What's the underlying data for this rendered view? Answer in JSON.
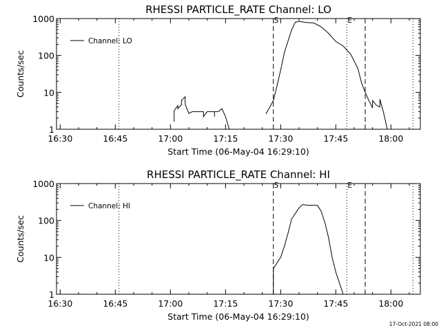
{
  "footer_date": "17-Oct-2021 08:00",
  "chart_data": [
    {
      "type": "line",
      "title": "RHESSI PARTICLE_RATE Channel: LO",
      "xlabel": "Start Time (06-May-04 16:29:10)",
      "ylabel": "Counts/sec",
      "y_scale": "log",
      "ylim": [
        1,
        1000
      ],
      "xlim": [
        "16:29",
        "18:08"
      ],
      "x_ticks": [
        "16:30",
        "16:45",
        "17:00",
        "17:15",
        "17:30",
        "17:45",
        "18:00"
      ],
      "y_ticks": [
        "1",
        "10",
        "100",
        "1000"
      ],
      "legend": {
        "position": "top-left",
        "entries": [
          "Channel: LO"
        ]
      },
      "dotted_lines_at": [
        "16:46",
        "17:48",
        "18:06"
      ],
      "dashed_lines_at": [
        "17:28",
        "17:53"
      ],
      "interval_markers": [
        {
          "label": "S",
          "at": "17:28"
        },
        {
          "label": "E",
          "at": "17:48"
        }
      ],
      "series": [
        {
          "name": "Channel: LO",
          "segments": [
            [
              [
                "17:01",
                1.6
              ],
              [
                "17:01",
                3.2
              ],
              [
                "17:02",
                4.4
              ],
              [
                "17:02",
                3.6
              ],
              [
                "17:03",
                4.6
              ],
              [
                "17:03",
                6.0
              ],
              [
                "17:04",
                7.6
              ],
              [
                "17:04",
                4.8
              ],
              [
                "17:05",
                2.7
              ],
              [
                "17:06",
                3.0
              ],
              [
                "17:09",
                3.0
              ],
              [
                "17:09",
                2.2
              ],
              [
                "17:10",
                3.0
              ],
              [
                "17:12",
                3.0
              ],
              [
                "17:12",
                2.2
              ],
              [
                "17:12",
                3.0
              ],
              [
                "17:13",
                3.0
              ],
              [
                "17:14",
                3.6
              ],
              [
                "17:15",
                2.2
              ],
              [
                "17:16",
                1.0
              ]
            ],
            [
              [
                "17:26",
                2.6
              ],
              [
                "17:28",
                6.0
              ],
              [
                "17:29",
                15
              ],
              [
                "17:30",
                40
              ],
              [
                "17:31",
                120
              ],
              [
                "17:33",
                500
              ],
              [
                "17:34",
                800
              ],
              [
                "17:35",
                840
              ],
              [
                "17:37",
                780
              ],
              [
                "17:39",
                760
              ],
              [
                "17:41",
                600
              ],
              [
                "17:43",
                400
              ],
              [
                "17:45",
                240
              ],
              [
                "17:47",
                180
              ],
              [
                "17:49",
                110
              ],
              [
                "17:51",
                45
              ],
              [
                "17:52",
                18
              ],
              [
                "17:53",
                10
              ],
              [
                "17:54",
                6
              ],
              [
                "17:55",
                3.8
              ],
              [
                "17:55",
                6
              ],
              [
                "17:56",
                4.5
              ],
              [
                "17:57",
                4.0
              ],
              [
                "17:57",
                6.5
              ],
              [
                "17:58",
                2.8
              ],
              [
                "17:59",
                1.0
              ]
            ]
          ]
        }
      ]
    },
    {
      "type": "line",
      "title": "RHESSI PARTICLE_RATE Channel: HI",
      "xlabel": "Start Time (06-May-04 16:29:10)",
      "ylabel": "Counts/sec",
      "y_scale": "log",
      "ylim": [
        1,
        1000
      ],
      "xlim": [
        "16:29",
        "18:08"
      ],
      "x_ticks": [
        "16:30",
        "16:45",
        "17:00",
        "17:15",
        "17:30",
        "17:45",
        "18:00"
      ],
      "y_ticks": [
        "1",
        "10",
        "100",
        "1000"
      ],
      "legend": {
        "position": "top-left",
        "entries": [
          "Channel: HI"
        ]
      },
      "dotted_lines_at": [
        "16:46",
        "17:48",
        "18:06"
      ],
      "dashed_lines_at": [
        "17:28",
        "17:53"
      ],
      "interval_markers": [
        {
          "label": "S",
          "at": "17:28"
        },
        {
          "label": "E",
          "at": "17:48"
        }
      ],
      "series": [
        {
          "name": "Channel: HI",
          "segments": [
            [
              [
                "17:28",
                1.0
              ],
              [
                "17:28",
                5.0
              ],
              [
                "17:30",
                10
              ],
              [
                "17:31",
                20
              ],
              [
                "17:32",
                45
              ],
              [
                "17:33",
                110
              ],
              [
                "17:35",
                220
              ],
              [
                "17:36",
                270
              ],
              [
                "17:37",
                260
              ],
              [
                "17:40",
                255
              ],
              [
                "17:41",
                180
              ],
              [
                "17:42",
                90
              ],
              [
                "17:43",
                35
              ],
              [
                "17:44",
                10
              ],
              [
                "17:45",
                4
              ],
              [
                "17:46",
                2
              ],
              [
                "17:47",
                1.0
              ]
            ]
          ]
        }
      ]
    }
  ]
}
